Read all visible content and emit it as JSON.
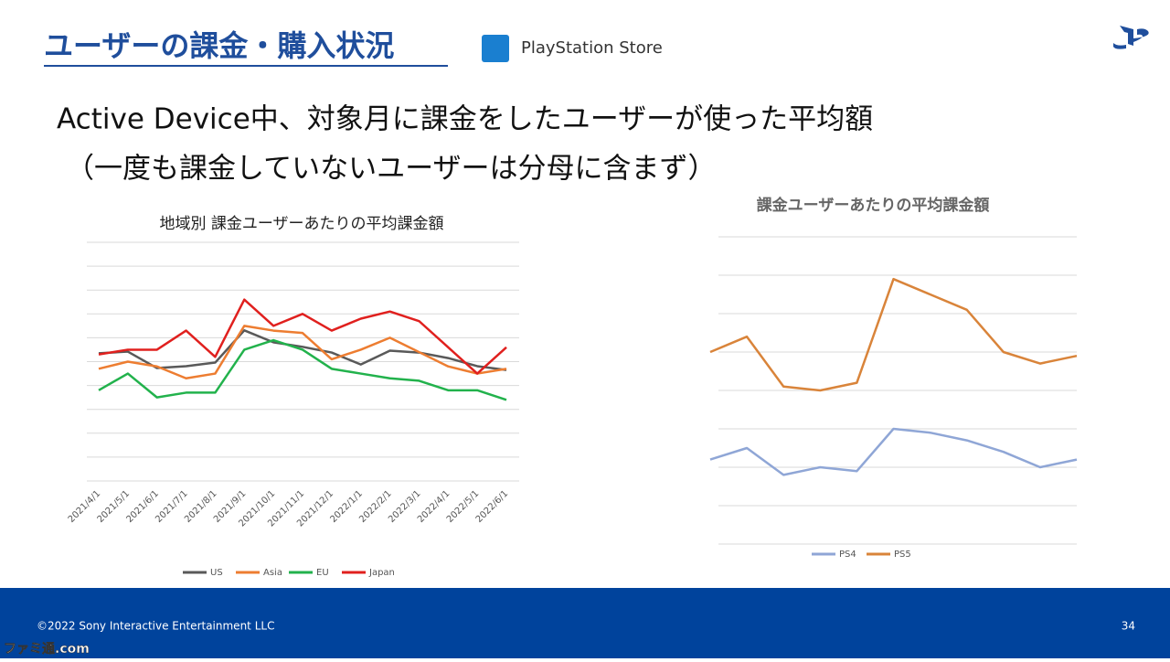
{
  "header": {
    "title": "ユーザーの課金・購入状況",
    "store": "PlayStation Store"
  },
  "subtitle": [
    "Active Device中、対象月に課金をしたユーザーが使った平均額",
    "（一度も課金していないユーザーは分母に含まず）"
  ],
  "chart_data": [
    {
      "type": "line",
      "title": "地域別 課金ユーザーあたりの平均課金額",
      "categories": [
        "2021/4/1",
        "2021/5/1",
        "2021/6/1",
        "2021/7/1",
        "2021/8/1",
        "2021/9/1",
        "2021/10/1",
        "2021/11/1",
        "2021/12/1",
        "2022/1/1",
        "2022/2/1",
        "2022/3/1",
        "2022/4/1",
        "2022/5/1",
        "2022/6/1"
      ],
      "series": [
        {
          "name": "US",
          "color": "#595959",
          "values": [
            5.35,
            5.42,
            4.73,
            4.81,
            4.96,
            6.31,
            5.81,
            5.62,
            5.38,
            4.88,
            5.46,
            5.38,
            5.15,
            4.81,
            4.65
          ]
        },
        {
          "name": "Asia",
          "color": "#ed7d31",
          "values": [
            4.7,
            5.0,
            4.8,
            4.3,
            4.5,
            6.5,
            6.3,
            6.2,
            5.1,
            5.5,
            6.0,
            5.4,
            4.8,
            4.5,
            4.7
          ]
        },
        {
          "name": "EU",
          "color": "#22b24c",
          "values": [
            3.8,
            4.5,
            3.5,
            3.7,
            3.7,
            5.5,
            5.9,
            5.5,
            4.7,
            4.5,
            4.3,
            4.2,
            3.8,
            3.8,
            3.4
          ]
        },
        {
          "name": "Japan",
          "color": "#e0201e",
          "values": [
            5.3,
            5.5,
            5.5,
            6.3,
            5.2,
            7.6,
            6.5,
            7.0,
            6.3,
            6.8,
            7.1,
            6.7,
            5.6,
            4.5,
            5.6
          ]
        }
      ],
      "ylim": [
        0,
        10
      ],
      "grid": true,
      "legend": "bottom"
    },
    {
      "type": "line",
      "title": "課金ユーザーあたりの平均課金額",
      "categories": [
        null,
        null,
        null,
        null,
        null,
        null,
        null,
        null,
        null,
        null,
        null
      ],
      "series": [
        {
          "name": "PS4",
          "color": "#8fa6d6",
          "values": [
            2.2,
            2.5,
            1.8,
            2.0,
            1.9,
            3.0,
            2.9,
            2.7,
            2.4,
            2.0,
            2.2
          ]
        },
        {
          "name": "PS5",
          "color": "#d9843a",
          "values": [
            5.0,
            5.4,
            4.1,
            4.0,
            4.2,
            6.9,
            6.5,
            6.1,
            5.0,
            4.7,
            4.9
          ]
        }
      ],
      "ylim": [
        0,
        8
      ],
      "grid": true,
      "legend": "bottom"
    }
  ],
  "footer": {
    "copyright": "©2022 Sony Interactive Entertainment LLC",
    "page": 34,
    "watermark": "ファミ通.com"
  }
}
